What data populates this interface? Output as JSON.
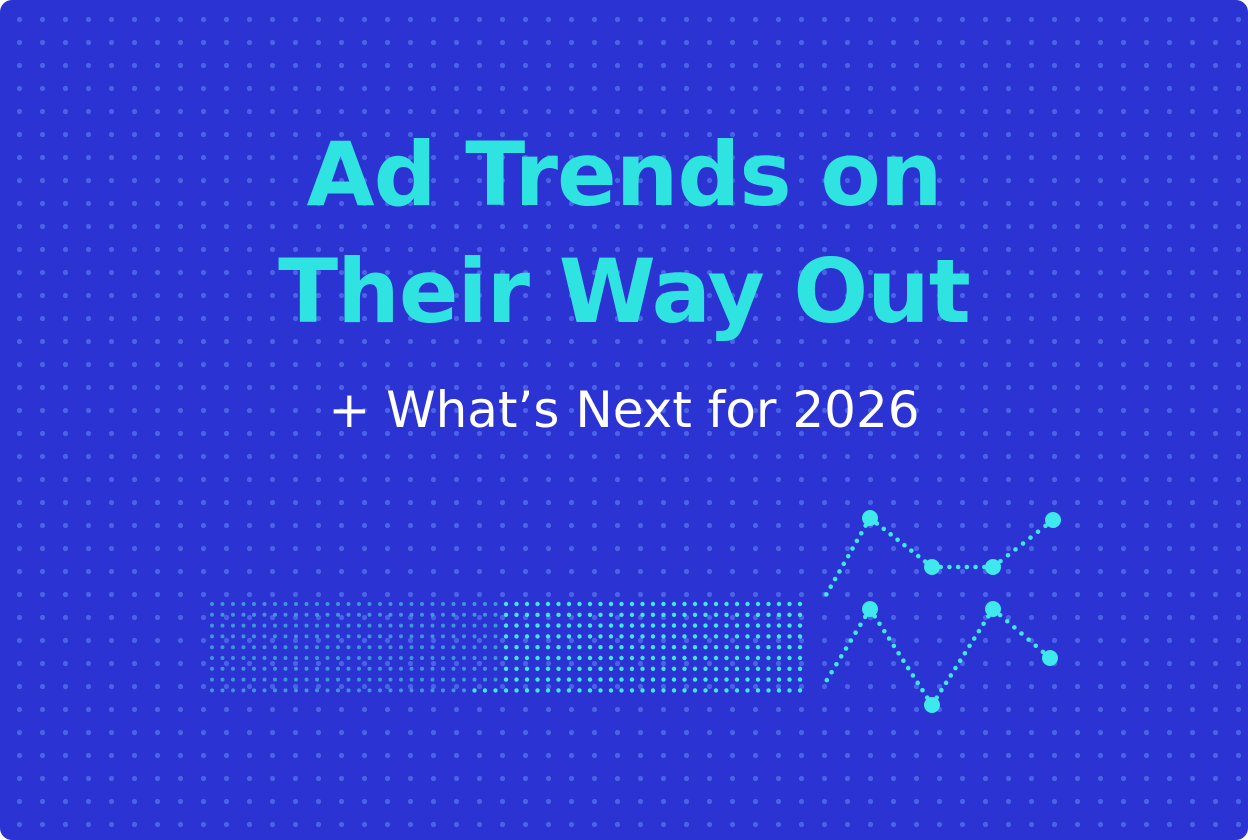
{
  "title": {
    "line1": "Ad Trends on",
    "line2": "Their Way Out"
  },
  "subtitle": "+ What’s Next for 2026"
}
